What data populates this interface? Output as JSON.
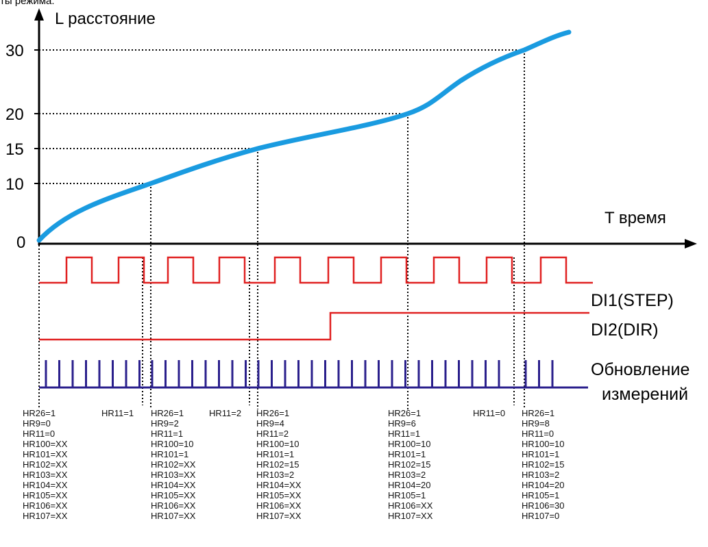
{
  "caption": "ты режима:",
  "chart": {
    "y_axis_title": "L расстояние",
    "x_axis_title": "T время",
    "y_ticks": [
      "30",
      "20",
      "15",
      "10",
      "0"
    ]
  },
  "signals": {
    "step_label": "DI1(STEP)",
    "dir_label": "DI2(DIR)",
    "update_label_1": "Обновление",
    "update_label_2": "измерений"
  },
  "hr11_markers": [
    "HR11=1",
    "HR11=2",
    "HR11=0"
  ],
  "register_columns": [
    [
      "HR26=1",
      "HR9=0",
      "HR11=0",
      "HR100=XX",
      "HR101=XX",
      "HR102=XX",
      "HR103=XX",
      "HR104=XX",
      "HR105=XX",
      "HR106=XX",
      "HR107=XX"
    ],
    [
      "HR26=1",
      "HR9=2",
      "HR11=1",
      "HR100=10",
      "HR101=1",
      "HR102=XX",
      "HR103=XX",
      "HR104=XX",
      "HR105=XX",
      "HR106=XX",
      "HR107=XX"
    ],
    [
      "HR26=1",
      "HR9=4",
      "HR11=2",
      "HR100=10",
      "HR101=1",
      "HR102=15",
      "HR103=2",
      "HR104=XX",
      "HR105=XX",
      "HR106=XX",
      "HR107=XX"
    ],
    [
      "HR26=1",
      "HR9=6",
      "HR11=1",
      "HR100=10",
      "HR101=1",
      "HR102=15",
      "HR103=2",
      "HR104=20",
      "HR105=1",
      "HR106=XX",
      "HR107=XX"
    ],
    [
      "HR26=1",
      "HR9=8",
      "HR11=0",
      "HR100=10",
      "HR101=1",
      "HR102=15",
      "HR103=2",
      "HR104=20",
      "HR105=1",
      "HR106=30",
      "HR107=0"
    ]
  ],
  "colors": {
    "curve": "#1a9be0",
    "step_signal": "#e02020",
    "dir_signal": "#e02020",
    "update_signal": "#2a1f8c",
    "axis": "#000000",
    "guides": "#000000"
  }
}
